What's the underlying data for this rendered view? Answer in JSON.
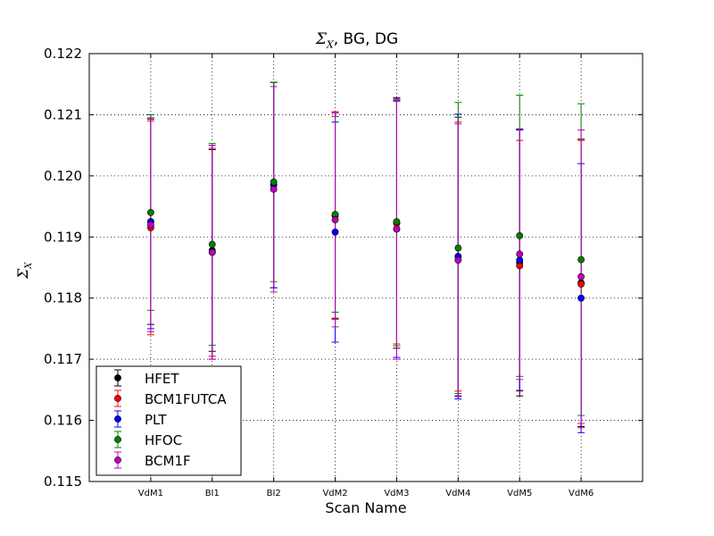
{
  "chart_data": {
    "type": "scatter",
    "title_symbol": "Σ",
    "title_subscript": "X",
    "title_rest": ", BG, DG",
    "xlabel": "Scan Name",
    "ylabel_symbol": "Σ",
    "ylabel_subscript": "X",
    "categories": [
      "VdM1",
      "BI1",
      "BI2",
      "VdM2",
      "VdM3",
      "VdM4",
      "VdM5",
      "VdM6"
    ],
    "ylim": [
      0.115,
      0.122
    ],
    "yticks": [
      "0.115",
      "0.116",
      "0.117",
      "0.118",
      "0.119",
      "0.120",
      "0.121",
      "0.122"
    ],
    "grid": true,
    "error_bars": true,
    "legend_position": "lower-left",
    "series": [
      {
        "name": "HFET",
        "color": "#000000",
        "values": [
          0.11925,
          0.11878,
          0.11985,
          0.11935,
          0.11923,
          0.11868,
          0.11858,
          0.11825
        ],
        "yerr": [
          0.00168,
          0.00165,
          0.00168,
          0.00168,
          0.00205,
          0.00228,
          0.00218,
          0.00235
        ]
      },
      {
        "name": "BCM1FUTCA",
        "color": "#ff0000",
        "values": [
          0.11915,
          0.11875,
          0.11985,
          0.11935,
          0.11922,
          0.11868,
          0.11853,
          0.11823
        ],
        "yerr": [
          0.00175,
          0.0017,
          0.00168,
          0.0017,
          0.002,
          0.0022,
          0.00205,
          0.00235
        ]
      },
      {
        "name": "PLT",
        "color": "#0000ff",
        "values": [
          0.11925,
          0.11875,
          0.11985,
          0.11908,
          0.11913,
          0.11868,
          0.11862,
          0.118
        ],
        "yerr": [
          0.00175,
          0.00175,
          0.00168,
          0.0018,
          0.0021,
          0.00233,
          0.00213,
          0.0022
        ]
      },
      {
        "name": "HFOC",
        "color": "#008000",
        "values": [
          0.1194,
          0.11888,
          0.1199,
          0.11937,
          0.11925,
          0.11882,
          0.11902,
          0.11863
        ],
        "yerr": [
          0.0016,
          0.00165,
          0.00163,
          0.0016,
          0.002,
          0.00238,
          0.0023,
          0.00255
        ]
      },
      {
        "name": "BCM1F",
        "color": "#bf00bf",
        "values": [
          0.1192,
          0.11875,
          0.11978,
          0.11928,
          0.11913,
          0.11862,
          0.11872,
          0.11835
        ],
        "yerr": [
          0.00175,
          0.00175,
          0.00168,
          0.00175,
          0.00213,
          0.00223,
          0.00205,
          0.0024
        ]
      }
    ]
  }
}
